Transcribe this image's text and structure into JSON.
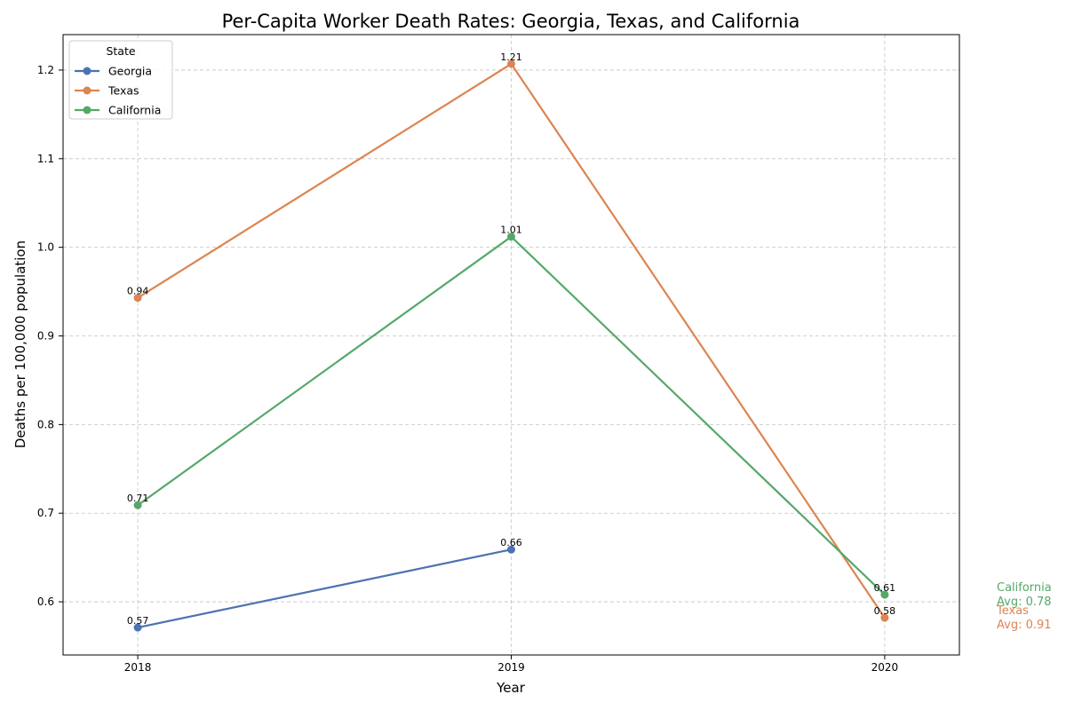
{
  "chart_data": {
    "type": "line",
    "title": "Per-Capita Worker Death Rates: Georgia, Texas, and California",
    "xlabel": "Year",
    "ylabel": "Deaths per 100,000 population",
    "x": [
      "2018",
      "2019",
      "2020"
    ],
    "xlim": [
      -0.2,
      2.2
    ],
    "ylim": [
      0.54,
      1.24
    ],
    "yticks": [
      "0.6",
      "0.7",
      "0.8",
      "0.9",
      "1.0",
      "1.1",
      "1.2"
    ],
    "grid": true,
    "legend": {
      "title": "State",
      "placement": "top-left"
    },
    "series": [
      {
        "name": "Georgia",
        "color": "#4c72b0",
        "values": [
          0.571,
          0.659,
          null
        ],
        "labels": [
          "0.57",
          "0.66",
          null
        ]
      },
      {
        "name": "Texas",
        "color": "#dd8452",
        "values": [
          0.943,
          1.207,
          0.582
        ],
        "labels": [
          "0.94",
          "1.21",
          "0.58"
        ],
        "avg_name": "Texas",
        "avg_text": "Avg: 0.91"
      },
      {
        "name": "California",
        "color": "#55a868",
        "values": [
          0.709,
          1.012,
          0.608
        ],
        "labels": [
          "0.71",
          "1.01",
          "0.61"
        ],
        "avg_name": "California",
        "avg_text": "Avg: 0.78"
      }
    ]
  }
}
